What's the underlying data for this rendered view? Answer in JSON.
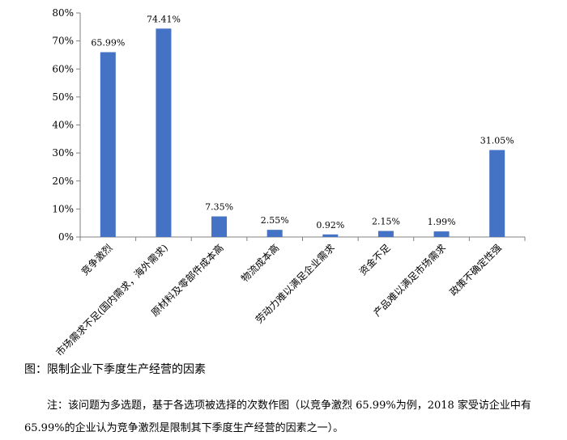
{
  "chart_data": {
    "type": "bar",
    "categories": [
      "竞争激烈",
      "市场需求不足(国内需求，海外需求)",
      "原材料及零部件成本高",
      "物流成本高",
      "劳动力难以满足企业需求",
      "资金不足",
      "产品难以满足市场需求",
      "政策不确定性强"
    ],
    "values": [
      65.99,
      74.41,
      7.35,
      2.55,
      0.92,
      2.15,
      1.99,
      31.05
    ],
    "data_labels": [
      "65.99%",
      "74.41%",
      "7.35%",
      "2.55%",
      "0.92%",
      "2.15%",
      "1.99%",
      "31.05%"
    ],
    "y_ticks": [
      "0%",
      "10%",
      "20%",
      "30%",
      "40%",
      "50%",
      "60%",
      "70%",
      "80%"
    ],
    "ylim": [
      0,
      80
    ],
    "grid": false,
    "bar_color": "#4472C4"
  },
  "caption": "图：限制企业下季度生产经营的因素",
  "note": {
    "line1": "注：该问题为多选题，基于各选项被选择的次数作图（以竞争激烈 65.99%为例，2018 家受访企业中有",
    "line2": "65.99%的企业认为竞争激烈是限制其下季度生产经营的因素之一）。"
  }
}
